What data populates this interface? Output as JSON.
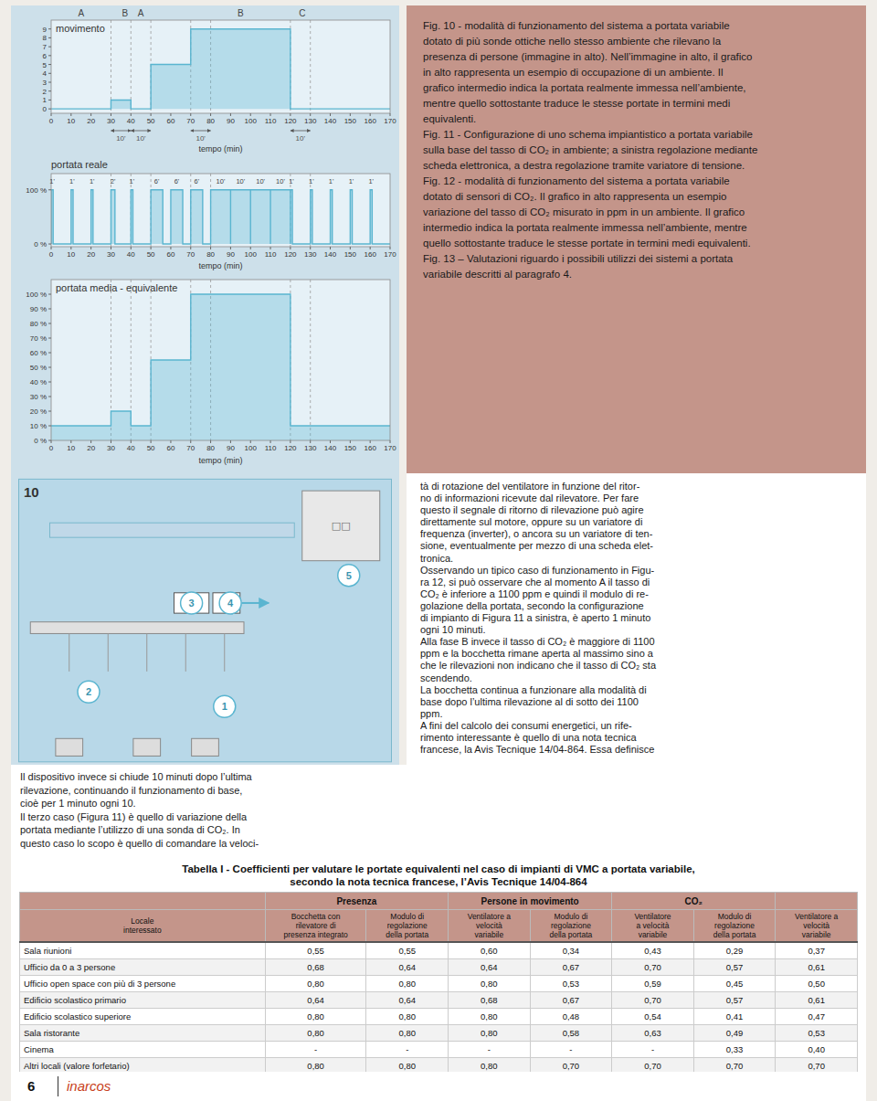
{
  "chart_data": [
    {
      "type": "step",
      "title": "movimento",
      "x_label": "tempo (min)",
      "x": [
        0,
        30,
        30,
        40,
        40,
        50,
        50,
        70,
        70,
        80,
        80,
        120,
        120,
        170
      ],
      "values": [
        0,
        0,
        1,
        1,
        0,
        0,
        5,
        5,
        9,
        9,
        9,
        9,
        0,
        0
      ],
      "color": "#5ab5d0",
      "xlim": [
        0,
        170
      ],
      "xticks": [
        0,
        10,
        20,
        30,
        40,
        50,
        60,
        70,
        80,
        90,
        100,
        110,
        120,
        130,
        140,
        150,
        160,
        170
      ],
      "ylim": [
        -0.5,
        10
      ],
      "yticks": [
        0,
        1,
        2,
        3,
        4,
        5,
        6,
        7,
        8,
        9
      ],
      "grid": false,
      "vlines": [
        30,
        40,
        50,
        70,
        80,
        120,
        130
      ],
      "annotations": [
        {
          "text": "A",
          "x": 15
        },
        {
          "text": "B",
          "x": 37
        },
        {
          "text": "A",
          "x": 45
        },
        {
          "text": "B",
          "x": 95
        },
        {
          "text": "C",
          "x": 126
        }
      ],
      "brackets": [
        {
          "from": 30,
          "to": 40,
          "label": "10'"
        },
        {
          "from": 40,
          "to": 50,
          "label": "10'"
        },
        {
          "from": 70,
          "to": 80,
          "label": "10'"
        },
        {
          "from": 120,
          "to": 130,
          "label": "10'"
        }
      ]
    },
    {
      "type": "area",
      "title": "portata reale",
      "x_label": "tempo (min)",
      "x": [
        0,
        0,
        0,
        1,
        1,
        10,
        10,
        11,
        11,
        20,
        20,
        21,
        21,
        30,
        30,
        32,
        32,
        40,
        40,
        41,
        41,
        50,
        50,
        56,
        56,
        60,
        60,
        66,
        66,
        70,
        70,
        76,
        76,
        80,
        80,
        90,
        90,
        90,
        90,
        100,
        100,
        100,
        100,
        110,
        110,
        110,
        110,
        120,
        120,
        120,
        120,
        121,
        121,
        130,
        130,
        131,
        131,
        140,
        140,
        141,
        141,
        150,
        150,
        151,
        151,
        160,
        160,
        161,
        161,
        170
      ],
      "values": [
        0,
        0,
        100,
        100,
        0,
        0,
        100,
        100,
        0,
        0,
        100,
        100,
        0,
        0,
        100,
        100,
        0,
        0,
        100,
        100,
        0,
        0,
        100,
        100,
        0,
        0,
        100,
        100,
        0,
        0,
        100,
        100,
        0,
        0,
        100,
        100,
        0,
        0,
        100,
        100,
        0,
        0,
        100,
        100,
        0,
        0,
        100,
        100,
        0,
        0,
        100,
        100,
        0,
        0,
        100,
        100,
        0,
        0,
        100,
        100,
        0,
        0,
        100,
        100,
        0,
        0,
        100,
        100,
        0,
        0
      ],
      "color": "#5ab5d0",
      "xlim": [
        0,
        170
      ],
      "xticks": [
        0,
        10,
        20,
        30,
        40,
        50,
        60,
        70,
        80,
        90,
        100,
        110,
        120,
        130,
        140,
        150,
        160,
        170
      ],
      "ylim": [
        -5,
        130
      ],
      "yticks": [
        {
          "value": 0,
          "label": "0 %"
        },
        {
          "value": 100,
          "label": "100 %"
        }
      ],
      "grid": false,
      "vlines": [
        30,
        40,
        50,
        70,
        80,
        120,
        130
      ],
      "annotations": [
        {
          "text": "1'",
          "x": 0.5
        },
        {
          "text": "1'",
          "x": 10.5
        },
        {
          "text": "1'",
          "x": 20.5
        },
        {
          "text": "2'",
          "x": 31
        },
        {
          "text": "1'",
          "x": 40.5
        },
        {
          "text": "6'",
          "x": 53
        },
        {
          "text": "6'",
          "x": 63
        },
        {
          "text": "6'",
          "x": 73
        },
        {
          "text": "10'",
          "x": 85
        },
        {
          "text": "10'",
          "x": 95
        },
        {
          "text": "10'",
          "x": 105
        },
        {
          "text": "10'",
          "x": 115
        },
        {
          "text": "1'",
          "x": 120.5
        },
        {
          "text": "1'",
          "x": 130.5
        },
        {
          "text": "1'",
          "x": 140.5
        },
        {
          "text": "1'",
          "x": 150.5
        },
        {
          "text": "1'",
          "x": 160.5
        }
      ]
    },
    {
      "type": "step",
      "title": "portata media - equivalente",
      "x_label": "tempo (min)",
      "x": [
        0,
        30,
        30,
        40,
        40,
        50,
        50,
        70,
        70,
        120,
        120,
        170
      ],
      "values": [
        10,
        10,
        20,
        20,
        10,
        10,
        55,
        55,
        100,
        100,
        10,
        10
      ],
      "color": "#5ab5d0",
      "xlim": [
        0,
        170
      ],
      "xticks": [
        0,
        10,
        20,
        30,
        40,
        50,
        60,
        70,
        80,
        90,
        100,
        110,
        120,
        130,
        140,
        150,
        160,
        170
      ],
      "ylim": [
        0,
        110
      ],
      "yticks": [
        {
          "value": 0,
          "label": "0 %"
        },
        {
          "value": 10,
          "label": "10 %"
        },
        {
          "value": 20,
          "label": "20 %"
        },
        {
          "value": 30,
          "label": "30 %"
        },
        {
          "value": 40,
          "label": "40 %"
        },
        {
          "value": 50,
          "label": "50 %"
        },
        {
          "value": 60,
          "label": "60 %"
        },
        {
          "value": 70,
          "label": "70 %"
        },
        {
          "value": 80,
          "label": "80 %"
        },
        {
          "value": 90,
          "label": "90 %"
        },
        {
          "value": 100,
          "label": "100 %"
        }
      ],
      "grid": false,
      "vlines": [
        30,
        40,
        50,
        70,
        80,
        120,
        130
      ]
    }
  ],
  "caption": [
    "Fig. 10 - modalità di funzionamento del sistema a portata variabile",
    "dotato di più sonde ottiche nello stesso ambiente che rilevano la",
    "presenza di persone (immagine in alto). Nell’immagine in alto, il grafico",
    "in alto rappresenta un esempio di occupazione di un ambiente. Il",
    "grafico intermedio indica la portata realmente immessa nell’ambiente,",
    "mentre quello sottostante traduce le stesse portate in termini medi",
    "equivalenti.",
    "Fig. 11 - Configurazione di uno schema impiantistico a portata variabile",
    "sulla base del tasso di CO₂ in ambiente; a sinistra regolazione mediante",
    "scheda elettronica, a destra regolazione tramite variatore di tensione.",
    "Fig. 12 - modalità di funzionamento del sistema a portata variabile",
    "dotato di sensori di CO₂. Il grafico in alto rappresenta un esempio",
    "variazione del tasso di CO₂ misurato in ppm in un ambiente. Il grafico",
    "intermedio indica la portata realmente immessa nell’ambiente, mentre",
    "quello sottostante traduce le stesse portate in termini medi equivalenti.",
    "Fig. 13 – Valutazioni riguardo i possibili utilizzi dei sistemi a portata",
    "variabile descritti al paragrafo 4."
  ],
  "body_right": [
    "tà di rotazione del ventilatore in funzione del ritor-",
    "no di informazioni ricevute dal rilevatore. Per fare",
    "questo il segnale di ritorno di rilevazione può agire",
    "direttamente sul motore, oppure su un variatore di",
    "frequenza (inverter), o ancora su un variatore di ten-",
    "sione, eventualmente per mezzo di una scheda elet-",
    "tronica.",
    "Osservando un tipico caso di funzionamento in Figu-",
    "ra 12, si può osservare che al momento A il tasso di",
    "CO₂ è inferiore a 1100 ppm e quindi il modulo di re-",
    "golazione della portata, secondo la configurazione",
    "di impianto di Figura 11 a sinistra, è aperto 1 minuto",
    "ogni 10 minuti.",
    "Alla fase B invece il tasso di CO₂ è maggiore di 1100",
    "ppm e la bocchetta rimane aperta al massimo sino a",
    "che le rilevazioni non indicano che il tasso di CO₂ sta",
    "scendendo.",
    "La bocchetta continua a funzionare alla modalità di",
    "base dopo l’ultima rilevazione al di sotto dei 1100",
    "ppm.",
    "A fini del calcolo dei consumi energetici, un rife-",
    "rimento interessante è quello di una nota tecnica",
    "francese, la Avis Tecnique 14/04-864. Essa definisce"
  ],
  "body_left_low": [
    "Il dispositivo invece si chiude 10 minuti dopo l’ultima",
    "rilevazione, continuando il funzionamento di base,",
    "cioè per 1 minuto ogni 10.",
    "Il terzo caso (Figura 11) è quello di variazione della",
    "portata mediante l’utilizzo di una sonda di CO₂. In",
    "questo caso lo scopo è quello di comandare la veloci-"
  ],
  "diagram": {
    "fan_label": "□□",
    "labels": [
      "1",
      "2",
      "3",
      "4",
      "5"
    ],
    "number": "10"
  },
  "table": {
    "title": "Tabella I - Coefficienti per valutare le portate equivalenti nel caso di impianti di VMC a portata variabile,",
    "subtitle": "secondo la nota tecnica francese, l’Avis Tecnique 14/04-864",
    "groups": [
      "Presenza",
      "Persone in movimento",
      "CO₂"
    ],
    "headers": [
      "Locale\ninteressato",
      "Bocchetta con\nrilevatore di\npresenza integrato",
      "Modulo di\nregolazione\ndella portata",
      "Ventilatore a\nvelocità\nvariabile",
      "Modulo di\nregolazione\ndella portata",
      "Ventilatore\na velocità\nvariabile",
      "Modulo di\nregolazione\ndella portata",
      "Ventilatore a\nvelocità\nvariabile"
    ],
    "rows": [
      [
        "Sala riunioni",
        "0,55",
        "0,55",
        "0,60",
        "0,34",
        "0,43",
        "0,29",
        "0,37"
      ],
      [
        "Ufficio da 0 a 3 persone",
        "0,68",
        "0,64",
        "0,64",
        "0,67",
        "0,70",
        "0,57",
        "0,61"
      ],
      [
        "Ufficio open space con più di 3 persone",
        "0,80",
        "0,80",
        "0,80",
        "0,53",
        "0,59",
        "0,45",
        "0,50"
      ],
      [
        "Edificio scolastico primario",
        "0,64",
        "0,64",
        "0,68",
        "0,67",
        "0,70",
        "0,57",
        "0,61"
      ],
      [
        "Edificio scolastico superiore",
        "0,80",
        "0,80",
        "0,80",
        "0,48",
        "0,54",
        "0,41",
        "0,47"
      ],
      [
        "Sala ristorante",
        "0,80",
        "0,80",
        "0,80",
        "0,58",
        "0,63",
        "0,49",
        "0,53"
      ],
      [
        "Cinema",
        "-",
        "-",
        "-",
        "-",
        "-",
        "0,33",
        "0,40"
      ],
      [
        "Altri locali (valore forfetario)",
        "0,80",
        "0,80",
        "0,80",
        "0,70",
        "0,70",
        "0,70",
        "0,70"
      ]
    ]
  },
  "page_number": "6",
  "page_footer": "inarcos"
}
